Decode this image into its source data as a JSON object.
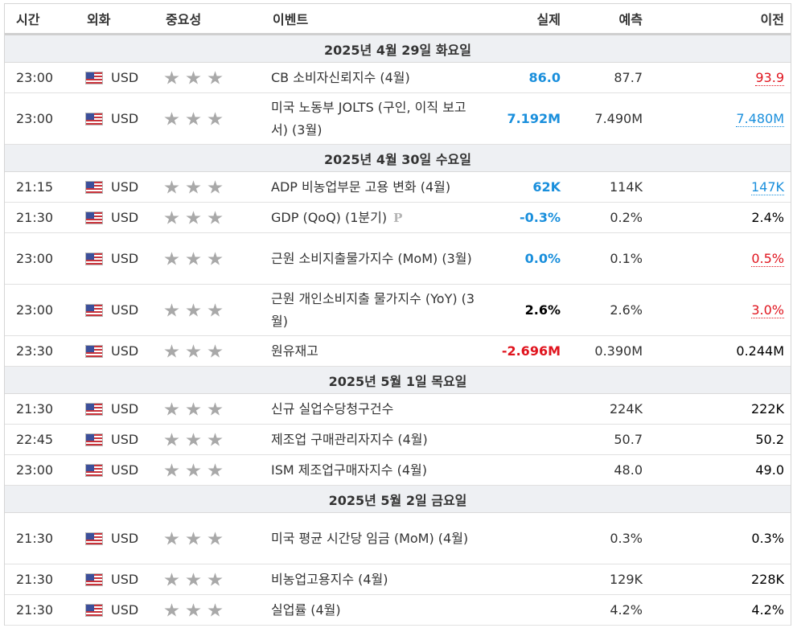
{
  "headers": {
    "time": "시간",
    "currency": "외화",
    "importance": "중요성",
    "event": "이벤트",
    "actual": "실제",
    "forecast": "예측",
    "previous": "이전"
  },
  "colors": {
    "positive": "#1a8fdc",
    "negative": "#e0141e",
    "date_row_bg": "#eef0f3",
    "star": "#a9a9a9"
  },
  "groups": [
    {
      "date": "2025년 4월 29일 화요일",
      "events": [
        {
          "time": "23:00",
          "currency": "USD",
          "flag_icon": "us-flag-icon",
          "stars": 3,
          "event": "CB 소비자신뢰지수 (4월)",
          "actual": "86.0",
          "actual_color": "blue",
          "forecast": "87.7",
          "previous": "93.9",
          "previous_style": "rev-red",
          "height": 38
        },
        {
          "time": "23:00",
          "currency": "USD",
          "flag_icon": "us-flag-icon",
          "stars": 3,
          "event": "미국 노동부 JOLTS (구인, 이직 보고서) (3월)",
          "actual": "7.192M",
          "actual_color": "blue",
          "forecast": "7.490M",
          "previous": "7.480M",
          "previous_style": "rev-blue",
          "height": 64
        }
      ]
    },
    {
      "date": "2025년 4월 30일 수요일",
      "events": [
        {
          "time": "21:15",
          "currency": "USD",
          "flag_icon": "us-flag-icon",
          "stars": 3,
          "event": "ADP 비농업부문 고용 변화 (4월)",
          "actual": "62K",
          "actual_color": "blue",
          "forecast": "114K",
          "previous": "147K",
          "previous_style": "rev-blue",
          "height": 38
        },
        {
          "time": "21:30",
          "currency": "USD",
          "flag_icon": "us-flag-icon",
          "stars": 3,
          "event": "GDP (QoQ) (1분기)",
          "preliminary_mark": "P",
          "actual": "-0.3%",
          "actual_color": "blue",
          "forecast": "0.2%",
          "previous": "2.4%",
          "previous_style": "plain",
          "height": 38
        },
        {
          "time": "23:00",
          "currency": "USD",
          "flag_icon": "us-flag-icon",
          "stars": 3,
          "event": "근원 소비지출물가지수 (MoM) (3월)",
          "actual": "0.0%",
          "actual_color": "blue",
          "forecast": "0.1%",
          "previous": "0.5%",
          "previous_style": "rev-red",
          "height": 64
        },
        {
          "time": "23:00",
          "currency": "USD",
          "flag_icon": "us-flag-icon",
          "stars": 3,
          "event": "근원 개인소비지출 물가지수 (YoY) (3월)",
          "actual": "2.6%",
          "actual_color": "black",
          "forecast": "2.6%",
          "previous": "3.0%",
          "previous_style": "rev-red",
          "height": 64
        },
        {
          "time": "23:30",
          "currency": "USD",
          "flag_icon": "us-flag-icon",
          "stars": 3,
          "event": "원유재고",
          "actual": "-2.696M",
          "actual_color": "red",
          "forecast": "0.390M",
          "previous": "0.244M",
          "previous_style": "plain",
          "height": 38
        }
      ]
    },
    {
      "date": "2025년 5월 1일 목요일",
      "events": [
        {
          "time": "21:30",
          "currency": "USD",
          "flag_icon": "us-flag-icon",
          "stars": 3,
          "event": "신규 실업수당청구건수",
          "actual": "",
          "actual_color": "black",
          "forecast": "224K",
          "previous": "222K",
          "previous_style": "plain",
          "height": 38
        },
        {
          "time": "22:45",
          "currency": "USD",
          "flag_icon": "us-flag-icon",
          "stars": 3,
          "event": "제조업 구매관리자지수 (4월)",
          "actual": "",
          "actual_color": "black",
          "forecast": "50.7",
          "previous": "50.2",
          "previous_style": "plain",
          "height": 38
        },
        {
          "time": "23:00",
          "currency": "USD",
          "flag_icon": "us-flag-icon",
          "stars": 3,
          "event": "ISM 제조업구매자지수 (4월)",
          "actual": "",
          "actual_color": "black",
          "forecast": "48.0",
          "previous": "49.0",
          "previous_style": "plain",
          "height": 38
        }
      ]
    },
    {
      "date": "2025년 5월 2일 금요일",
      "events": [
        {
          "time": "21:30",
          "currency": "USD",
          "flag_icon": "us-flag-icon",
          "stars": 3,
          "event": "미국 평균 시간당 임금 (MoM) (4월)",
          "actual": "",
          "actual_color": "black",
          "forecast": "0.3%",
          "previous": "0.3%",
          "previous_style": "plain",
          "height": 64
        },
        {
          "time": "21:30",
          "currency": "USD",
          "flag_icon": "us-flag-icon",
          "stars": 3,
          "event": "비농업고용지수 (4월)",
          "actual": "",
          "actual_color": "black",
          "forecast": "129K",
          "previous": "228K",
          "previous_style": "plain",
          "height": 38
        },
        {
          "time": "21:30",
          "currency": "USD",
          "flag_icon": "us-flag-icon",
          "stars": 3,
          "event": "실업률 (4월)",
          "actual": "",
          "actual_color": "black",
          "forecast": "4.2%",
          "previous": "4.2%",
          "previous_style": "plain",
          "height": 38
        }
      ]
    }
  ]
}
